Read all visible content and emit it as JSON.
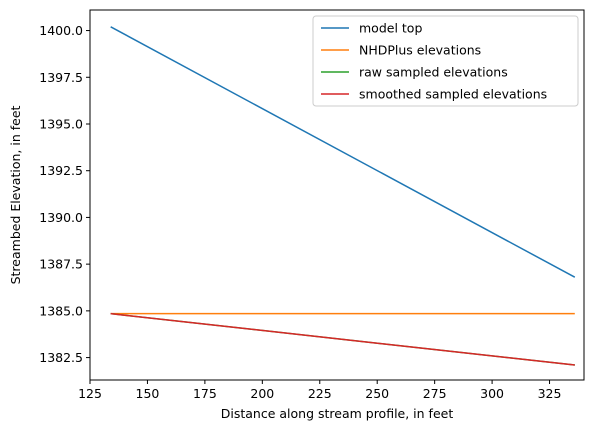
{
  "chart_data": {
    "type": "line",
    "title": "",
    "xlabel": "Distance along stream profile, in feet",
    "ylabel": "Streambed Elevation, in feet",
    "xlim": [
      125,
      340
    ],
    "ylim": [
      1381.3,
      1401.1
    ],
    "xticks": [
      125,
      150,
      175,
      200,
      225,
      250,
      275,
      300,
      325
    ],
    "yticks": [
      1382.5,
      1385.0,
      1387.5,
      1390.0,
      1392.5,
      1395.0,
      1397.5,
      1400.0
    ],
    "ytick_labels": [
      "1382.5",
      "1385.0",
      "1387.5",
      "1390.0",
      "1392.5",
      "1395.0",
      "1397.5",
      "1400.0"
    ],
    "grid": false,
    "legend_position": "top-right",
    "series": [
      {
        "name": "model top",
        "color": "#1f77b4",
        "x": [
          134,
          336
        ],
        "y": [
          1400.2,
          1386.8
        ]
      },
      {
        "name": "NHDPlus elevations",
        "color": "#ff7f0e",
        "x": [
          134,
          336
        ],
        "y": [
          1384.85,
          1384.85
        ]
      },
      {
        "name": "raw sampled elevations",
        "color": "#2ca02c",
        "x": [
          134,
          336
        ],
        "y": [
          1384.85,
          1382.1
        ]
      },
      {
        "name": "smoothed sampled elevations",
        "color": "#d62728",
        "x": [
          134,
          336
        ],
        "y": [
          1384.85,
          1382.1
        ]
      }
    ]
  }
}
